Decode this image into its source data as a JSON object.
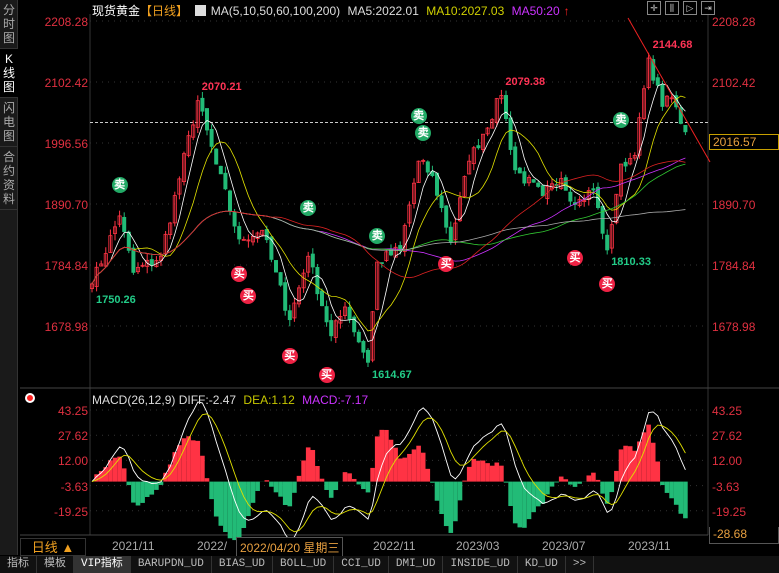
{
  "sidebar": {
    "tabs": [
      {
        "label": "分时图"
      },
      {
        "label": "K线图",
        "active": true
      },
      {
        "label": "闪电图"
      },
      {
        "label": "合约资料"
      }
    ]
  },
  "header": {
    "title": "现货黄金",
    "period_tag": "【日线】",
    "ma_params": "MA(5,10,50,60,100,200)",
    "ma5": "MA5:2022.01",
    "ma10": "MA10:2027.03",
    "ma50": "MA50:20",
    "arrow": "↑"
  },
  "toolbar": [
    "crosshair",
    "zoom-in",
    "zoom-out",
    "shift-right"
  ],
  "price_axis": [
    "2208.28",
    "2102.42",
    "1996.56",
    "1890.70",
    "1784.84",
    "1678.98"
  ],
  "current_price": "2016.57",
  "macd": {
    "label": "MACD(26,12,9)",
    "diff": "DIFF:-2.47",
    "dea": "DEA:1.12",
    "macd": "MACD:-7.17",
    "axis": [
      "43.25",
      "27.62",
      "12.00",
      "-3.63",
      "-19.25"
    ],
    "min_label": "-28.68"
  },
  "time_axis": {
    "period": "日线 ▲",
    "labels": [
      "2021/11",
      "2022/",
      "2022/11",
      "2023/03",
      "2023/07",
      "2023/11"
    ],
    "cursor_date": "2022/04/20 星期三"
  },
  "bottom_tabs": [
    "指标",
    "模板",
    "VIP指标",
    "BARUPDN_UD",
    "BIAS_UD",
    "BOLL_UD",
    "CCI_UD",
    "DMI_UD",
    "INSIDE_UD",
    "KD_UD",
    ">>"
  ],
  "colors": {
    "up": "#ff3344",
    "down": "#22bb77",
    "ma5": "#ffffff",
    "ma10": "#e0e000",
    "ma50": "#cc33ff",
    "ma60": "#33cc33",
    "ma100": "#aaaaaa",
    "ma200": "#dd2222"
  },
  "chart_data": {
    "type": "candlestick",
    "title": "现货黄金 日线",
    "ylim": [
      1620,
      2215
    ],
    "candles": 130,
    "key_points": [
      [
        0,
        1752
      ],
      [
        6,
        1870
      ],
      [
        9,
        1772
      ],
      [
        15,
        1800
      ],
      [
        23,
        2070
      ],
      [
        27,
        1960
      ],
      [
        32,
        1830
      ],
      [
        37,
        1845
      ],
      [
        43,
        1690
      ],
      [
        47,
        1800
      ],
      [
        52,
        1662
      ],
      [
        55,
        1712
      ],
      [
        60,
        1616
      ],
      [
        62,
        1790
      ],
      [
        67,
        1812
      ],
      [
        71,
        1965
      ],
      [
        74,
        1940
      ],
      [
        78,
        1825
      ],
      [
        82,
        1965
      ],
      [
        89,
        2079
      ],
      [
        92,
        1950
      ],
      [
        98,
        1905
      ],
      [
        102,
        1935
      ],
      [
        105,
        1890
      ],
      [
        109,
        1915
      ],
      [
        112,
        1811
      ],
      [
        115,
        1960
      ],
      [
        118,
        1975
      ],
      [
        121,
        2144
      ],
      [
        124,
        2060
      ],
      [
        126,
        2075
      ],
      [
        129,
        2016
      ]
    ],
    "price_labels": [
      {
        "i": 23,
        "text": "2070.21",
        "type": "high"
      },
      {
        "i": 89,
        "text": "2079.38",
        "type": "high"
      },
      {
        "i": 121,
        "text": "2144.68",
        "type": "high"
      },
      {
        "i": 0,
        "text": "1750.26",
        "type": "low"
      },
      {
        "i": 60,
        "text": "1614.67",
        "type": "low"
      },
      {
        "i": 112,
        "text": "1810.33",
        "type": "low"
      }
    ],
    "signals": [
      {
        "i": 6,
        "t": "卖"
      },
      {
        "i": 47,
        "t": "卖"
      },
      {
        "i": 62,
        "t": "卖"
      },
      {
        "i": 71,
        "t": "卖"
      },
      {
        "i": 72,
        "t": "卖"
      },
      {
        "i": 115,
        "t": "卖"
      },
      {
        "i": 32,
        "t": "买"
      },
      {
        "i": 34,
        "t": "买"
      },
      {
        "i": 43,
        "t": "买"
      },
      {
        "i": 51,
        "t": "买"
      },
      {
        "i": 77,
        "t": "买"
      },
      {
        "i": 105,
        "t": "买"
      },
      {
        "i": 112,
        "t": "买"
      }
    ]
  }
}
